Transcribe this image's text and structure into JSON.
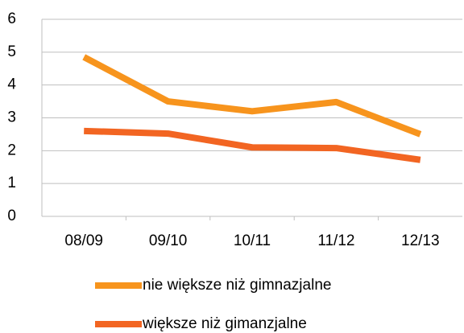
{
  "chart_data": {
    "type": "line",
    "categories": [
      "08/09",
      "09/10",
      "10/11",
      "11/12",
      "12/13"
    ],
    "series": [
      {
        "name": "nie większe niż gimnazjalne",
        "color": "#f7941d",
        "values": [
          4.85,
          3.5,
          3.2,
          3.48,
          2.5
        ]
      },
      {
        "name": "większe niż gimanzjalne",
        "color": "#f26522",
        "values": [
          2.6,
          2.52,
          2.1,
          2.08,
          1.72
        ]
      }
    ],
    "ylim": [
      0,
      6
    ],
    "yticks": [
      0,
      1,
      2,
      3,
      4,
      5,
      6
    ],
    "grid": true,
    "legend": "bottom"
  }
}
